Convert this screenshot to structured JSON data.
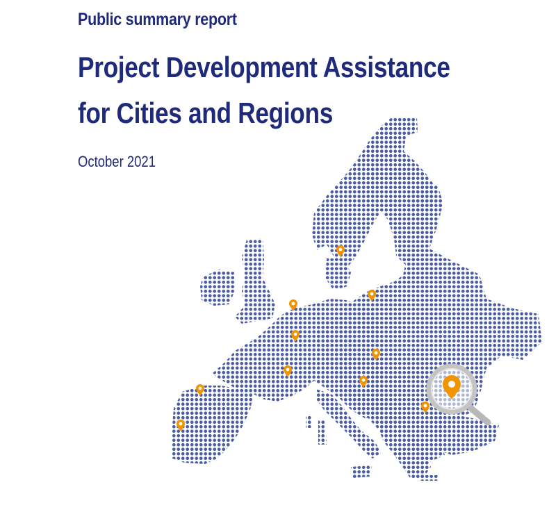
{
  "report": {
    "type_label": "Public summary report",
    "title_line1": "Project Development Assistance",
    "title_line2": "for Cities and Regions",
    "date": "October 2021"
  },
  "colors": {
    "heading": "#1f2a7a",
    "map_dots": "#4a5da5",
    "pin": "#f29400",
    "magnifier": "#b8b8b8"
  },
  "icons": {
    "location_pin": "map-pin-icon",
    "magnifier": "magnifying-glass-icon"
  }
}
